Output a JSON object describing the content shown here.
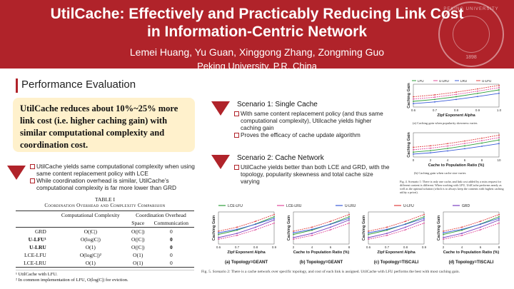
{
  "header": {
    "title_line1": "UtilCache: Effectively and Practicably Reducing Link Cost",
    "title_line2": "in Information-Centric Network",
    "authors": "Lemei Huang, Yu Guan, Xinggong Zhang,  Zongming Guo",
    "affiliation": "Peking University, P.R. China",
    "seal_text": "PEKING UNIVERSITY",
    "seal_year": "1898"
  },
  "section": {
    "title": "Performance Evaluation"
  },
  "highlight": "UtilCache reduces about 10%~25% more link cost (i.e. higher caching gain) with similar computational complexity and coordination cost.",
  "left_bullets": [
    "UtilCache yields same computational complexity when using same content replacement policy with LCE",
    "While coordination overhead is similar, UtilCache’s computational complexity is far more lower than GRD"
  ],
  "scenario1": {
    "title": "Scenario 1: Single Cache",
    "bullets": [
      "With same content replacement policy (and thus same computational complexity), Utilcache yields higher caching gain",
      "Proves the efficacy of cache update algorithm"
    ]
  },
  "scenario2": {
    "title": "Scenario 2: Cache Network",
    "bullets": [
      "UtilCache yields better than both LCE and GRD, with the topology, popularity skewness and total cache size varying"
    ]
  },
  "table": {
    "caption": "TABLE I",
    "subtitle": "Coordination Overhead and Complexity Comparision",
    "col_complexity": "Computational Complexity",
    "col_overhead": "Coordination Overhead",
    "col_space": "Space",
    "col_comm": "Communication",
    "rows": [
      {
        "name": "GRD",
        "complexity": "O(|C|)",
        "space": "O(|C|)",
        "comm": "0"
      },
      {
        "name": "U-LFU¹",
        "complexity": "O(log|C|)",
        "space": "O(|C|)",
        "comm": "0"
      },
      {
        "name": "U-LRU",
        "complexity": "O(1)",
        "space": "O(|C|)",
        "comm": "0"
      },
      {
        "name": "LCE-LFU",
        "complexity": "O(log|C|)²",
        "space": "O(1)",
        "comm": "0"
      },
      {
        "name": "LCE-LRU",
        "complexity": "O(1)",
        "space": "O(1)",
        "comm": "0"
      }
    ],
    "notes": [
      "¹ UtilCache with LFU.",
      "² In common implementation of LFU, O(log|C|) for eviction."
    ]
  },
  "fig4": {
    "legend": [
      "LFU",
      "U-LRU",
      "LRU",
      "U-LFU"
    ],
    "a_xlabel": "Zipf Exponent Alpha",
    "a_ylabel": "Caching Gain",
    "a_xticks": [
      "0.6",
      "0.7",
      "0.8",
      "0.9",
      "1.0"
    ],
    "a_caption": "(a) Caching gain when popularity skewness varies",
    "b_xlabel": "Cache to Population Ratio (%)",
    "b_ylabel": "Caching Gain",
    "b_xticks": [
      "0",
      "2",
      "4",
      "6",
      "8",
      "10"
    ],
    "b_caption": "(b) Caching gain when cache size varies",
    "caption": "Fig. 4.  Scenario 1: There is only one cache, and link cost added by a miss request for different content is different. When working with LFU, UtilCache performs nearly as well as the optimal solution (which is to always keep the contents with highest caching utility a priori)."
  },
  "fig5": {
    "legend": [
      "LCE-LFU",
      "LCE-LRU",
      "U-LRU",
      "U-LFU",
      "GRD"
    ],
    "panels": [
      {
        "xlabel": "Zipf Exponent Alpha",
        "xticks": [
          "0.6",
          "0.7",
          "0.8",
          "0.9"
        ],
        "caption": "(a)  Topology=GEANT"
      },
      {
        "xlabel": "Cache to Population Ratio (%)",
        "xticks": [
          "2",
          "4",
          "6",
          "8"
        ],
        "caption": "(b)  Topology=GEANT"
      },
      {
        "xlabel": "Zipf Exponent Alpha",
        "xticks": [
          "0.6",
          "0.7",
          "0.8",
          "0.9"
        ],
        "caption": "(c)  Topology=TISCALI"
      },
      {
        "xlabel": "Cache to Population Ratio (%)",
        "xticks": [
          "2",
          "4",
          "6",
          "8"
        ],
        "caption": "(d)  Topology=TISCALI"
      }
    ],
    "ylabel": "Caching Gain",
    "caption": "Fig. 5.   Scenario 2: There is a cache network over specific topology, and cost of each link is assigned. UtilCache with LFU performs the best with most caching gain."
  },
  "colors": {
    "brand": "#b0232a",
    "highlight_bg": "#fff1cc",
    "series": [
      "#2e9e3a",
      "#e04a9a",
      "#3a5bd9",
      "#e04040",
      "#7a3fc0"
    ]
  }
}
